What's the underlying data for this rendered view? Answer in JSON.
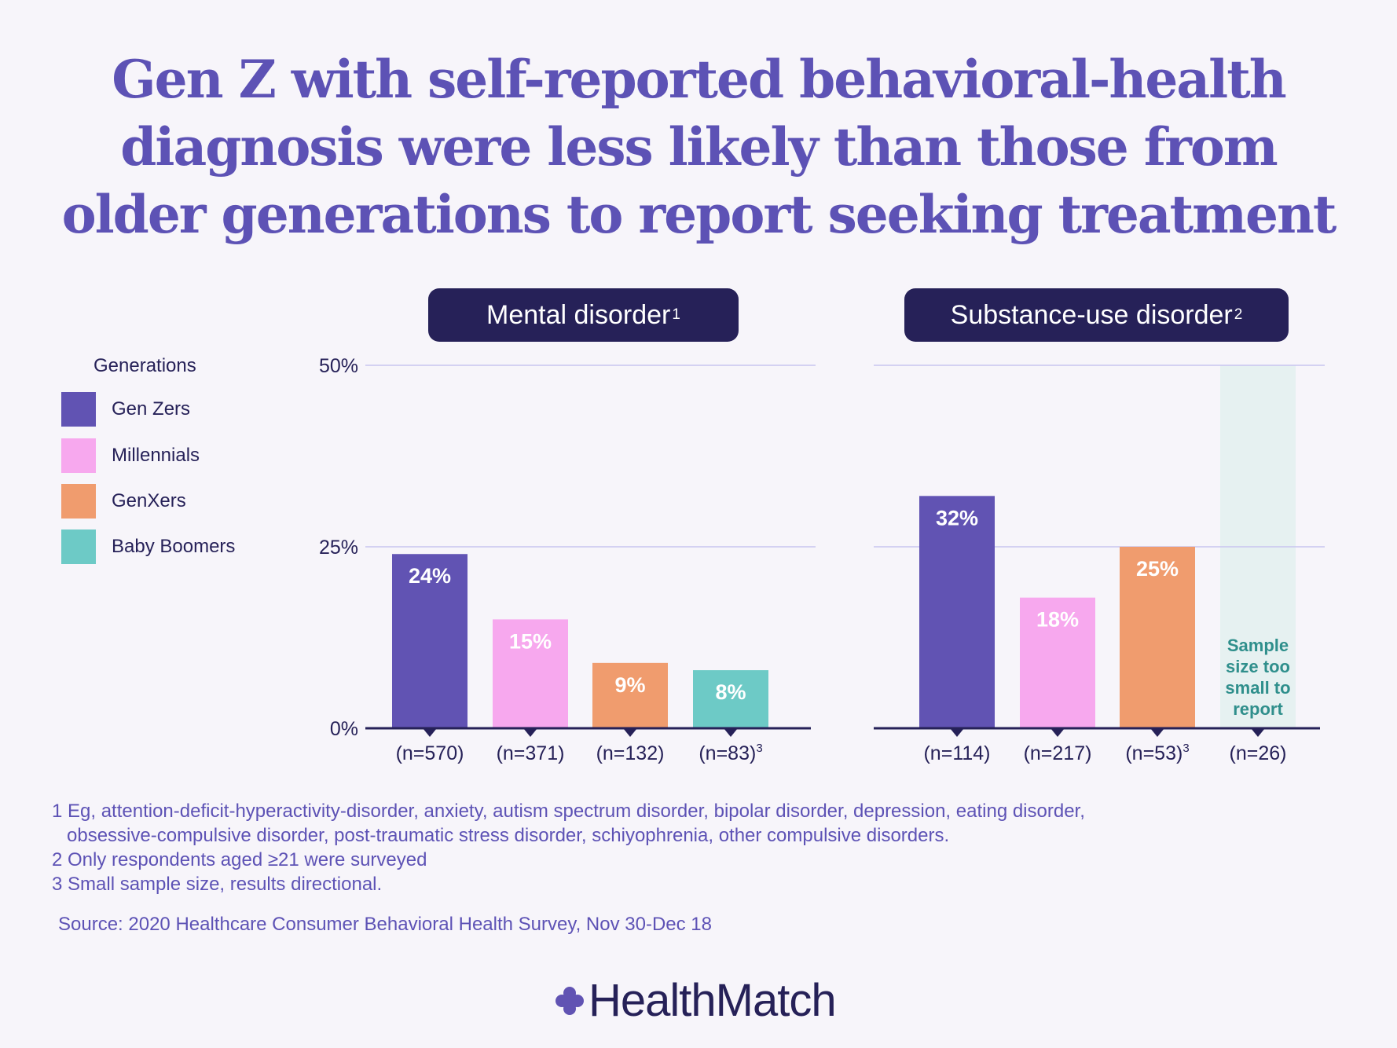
{
  "title": {
    "lines": [
      "Gen Z with self-reported behavioral-health",
      "diagnosis were less likely than those from",
      "older generations to report seeking treatment"
    ]
  },
  "legend": {
    "title": "Generations",
    "items": [
      {
        "label": "Gen Zers",
        "color": "#6153b3"
      },
      {
        "label": "Millennials",
        "color": "#f7a8ee"
      },
      {
        "label": "GenXers",
        "color": "#f09c6e"
      },
      {
        "label": "Baby Boomers",
        "color": "#6dcac6"
      }
    ]
  },
  "colors": {
    "background": "#f7f5fa",
    "title": "#5d52b5",
    "header": "#262158",
    "gridline": "#c9c5ef",
    "not_reported_panel": "#e6f1f1",
    "not_reported_text": "#2f8f8c"
  },
  "chart_data": [
    {
      "type": "bar",
      "title": "Mental disorder",
      "title_sup": "1",
      "categories": [
        "(n=570)",
        "(n=371)",
        "(n=132)",
        "(n=83)"
      ],
      "category_sups": [
        "",
        "",
        "",
        "3"
      ],
      "series_names": [
        "Gen Zers",
        "Millennials",
        "GenXers",
        "Baby Boomers"
      ],
      "values": [
        24,
        15,
        9,
        8
      ],
      "data_labels": [
        "24%",
        "15%",
        "9%",
        "8%"
      ],
      "ylim": [
        0,
        50
      ],
      "yticks": [
        "0%",
        "25%",
        "50%"
      ],
      "ytick_values": [
        0,
        25,
        50
      ],
      "grid": true
    },
    {
      "type": "bar",
      "title": "Substance-use disorder",
      "title_sup": "2",
      "categories": [
        "(n=114)",
        "(n=217)",
        "(n=53)",
        "(n=26)"
      ],
      "category_sups": [
        "",
        "",
        "3",
        ""
      ],
      "series_names": [
        "Gen Zers",
        "Millennials",
        "GenXers",
        "Baby Boomers"
      ],
      "values": [
        32,
        18,
        25,
        null
      ],
      "data_labels": [
        "32%",
        "18%",
        "25%",
        ""
      ],
      "not_reported_note": [
        "Sample",
        "size too",
        "small to",
        "report"
      ],
      "ylim": [
        0,
        50
      ],
      "ytick_values": [
        0,
        25,
        50
      ],
      "grid": true
    }
  ],
  "footnotes": {
    "note1_line1": "1 Eg, attention-deficit-hyperactivity-disorder, anxiety, autism spectrum disorder, bipolar disorder, depression, eating disorder,",
    "note1_line2": "obsessive-compulsive disorder, post-traumatic stress disorder, schiyophrenia, other compulsive disorders.",
    "note2": "2 Only respondents aged ≥21 were surveyed",
    "note3": "3 Small sample size, results directional."
  },
  "source": "Source: 2020 Healthcare Consumer Behavioral Health Survey, Nov 30-Dec 18",
  "logo": {
    "text": "HealthMatch",
    "icon": "plus-cross-icon"
  }
}
